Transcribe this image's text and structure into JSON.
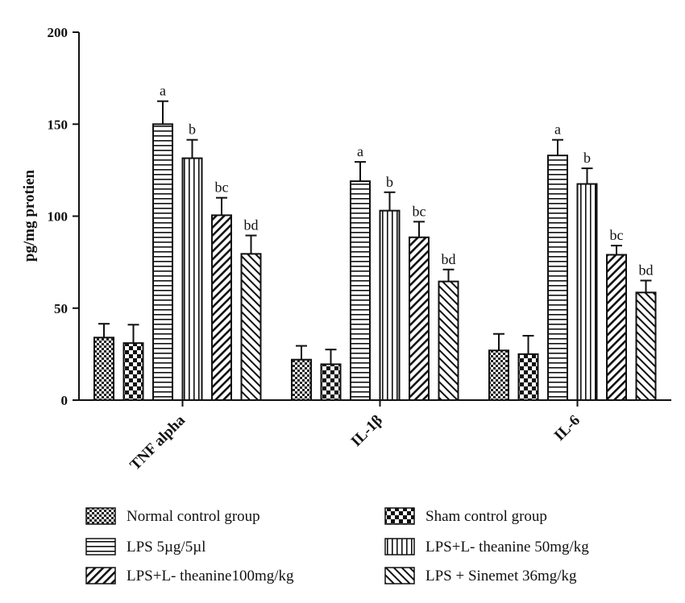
{
  "chart_data": {
    "type": "bar",
    "title": "",
    "xlabel": "",
    "ylabel": "pg/mg protien",
    "ylim": [
      0,
      200
    ],
    "yticks": [
      0,
      50,
      100,
      150,
      200
    ],
    "categories": [
      "TNF alpha",
      "IL-1β",
      "IL-6"
    ],
    "legend_placement": "bottom",
    "grid": false,
    "series": [
      {
        "name": "Normal control group",
        "values": [
          34,
          22,
          27
        ],
        "errors": [
          7.5,
          7.5,
          9
        ],
        "labels": [
          "",
          "",
          ""
        ],
        "pattern": "checker-small"
      },
      {
        "name": "Sham control group",
        "values": [
          31,
          19.5,
          25
        ],
        "errors": [
          10,
          8,
          10
        ],
        "labels": [
          "",
          "",
          ""
        ],
        "pattern": "checker-large"
      },
      {
        "name": "LPS 5µg/5µl",
        "values": [
          150,
          119,
          133
        ],
        "errors": [
          12.5,
          10.5,
          8.5
        ],
        "labels": [
          "a",
          "a",
          "a"
        ],
        "pattern": "horizontal"
      },
      {
        "name": "LPS+L- theanine 50mg/kg",
        "values": [
          131.5,
          103,
          117.5
        ],
        "errors": [
          10,
          10,
          8.5
        ],
        "labels": [
          "b",
          "b",
          "b"
        ],
        "pattern": "vertical"
      },
      {
        "name": "LPS+L- theanine100mg/kg",
        "values": [
          100.5,
          88.5,
          79
        ],
        "errors": [
          9.5,
          8.5,
          5
        ],
        "labels": [
          "bc",
          "bc",
          "bc"
        ],
        "pattern": "diag-up"
      },
      {
        "name": "LPS  + Sinemet 36mg/kg",
        "values": [
          79.5,
          64.5,
          58.5
        ],
        "errors": [
          10,
          6.5,
          6.5
        ],
        "labels": [
          "bd",
          "bd",
          "bd"
        ],
        "pattern": "diag-down"
      }
    ]
  }
}
